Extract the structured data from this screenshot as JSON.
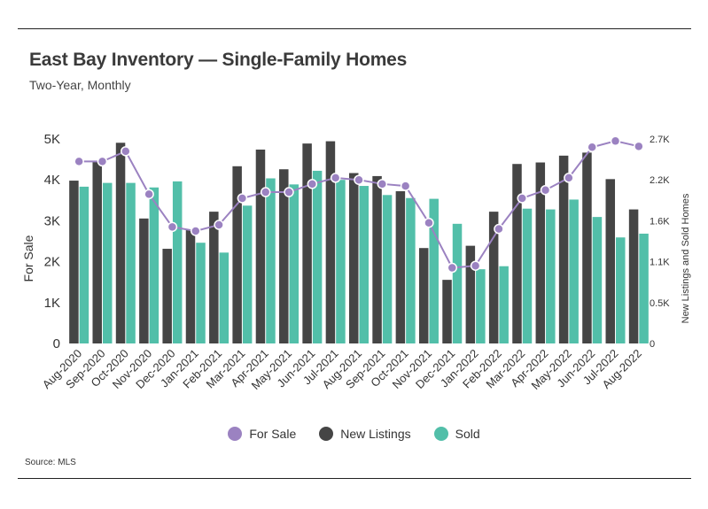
{
  "title": "East Bay Inventory — Single-Family Homes",
  "subtitle": "Two-Year, Monthly",
  "source": "Source:  MLS",
  "colors": {
    "for_sale": "#9b82c1",
    "new_listings": "#454545",
    "sold": "#52bfa9",
    "text": "#333333"
  },
  "chart_data": {
    "type": "bar",
    "combo": "bars (New Listings, Sold) on right axis; line (For Sale) on left axis",
    "categories": [
      "Aug-2020",
      "Sep-2020",
      "Oct-2020",
      "Nov-2020",
      "Dec-2020",
      "Jan-2021",
      "Feb-2021",
      "Mar-2021",
      "Apr-2021",
      "May-2021",
      "Jun-2021",
      "Jul-2021",
      "Aug-2021",
      "Sep-2021",
      "Oct-2021",
      "Nov-2021",
      "Dec-2021",
      "Jan-2022",
      "Feb-2022",
      "Mar-2022",
      "Apr-2022",
      "May-2022",
      "Jun-2022",
      "Jul-2022",
      "Aug-2022"
    ],
    "ylabel": "For Sale",
    "y2label": "New Listings and Sold Homes",
    "ylim": [
      0,
      5000
    ],
    "y2lim": [
      0,
      2700
    ],
    "yticks": [
      "0",
      "1K",
      "2K",
      "3K",
      "4K",
      "5K"
    ],
    "y2ticks": [
      "0",
      "0.5K",
      "1.1K",
      "1.6K",
      "2.2K",
      "2.7K"
    ],
    "grid": false,
    "legend_position": "bottom",
    "series": [
      {
        "name": "For Sale",
        "type": "line",
        "axis": "left",
        "values": [
          4450,
          4450,
          4700,
          3650,
          2850,
          2750,
          2900,
          3550,
          3700,
          3700,
          3900,
          4050,
          4000,
          3900,
          3850,
          2950,
          1850,
          1900,
          2800,
          3550,
          3750,
          4050,
          4800,
          4950,
          4820
        ]
      },
      {
        "name": "New Listings",
        "type": "bar",
        "axis": "right",
        "values": [
          2150,
          2400,
          2650,
          1650,
          1250,
          1500,
          1740,
          2340,
          2560,
          2300,
          2640,
          2670,
          2250,
          2210,
          2010,
          1260,
          840,
          1290,
          1740,
          2370,
          2390,
          2480,
          2520,
          2170,
          1770
        ]
      },
      {
        "name": "Sold",
        "type": "bar",
        "axis": "right",
        "values": [
          2070,
          2120,
          2120,
          2060,
          2140,
          1330,
          1200,
          1820,
          2180,
          2100,
          2280,
          2160,
          2080,
          1960,
          1920,
          1910,
          1580,
          980,
          1020,
          1780,
          1770,
          1900,
          1670,
          1400,
          1450
        ]
      }
    ]
  }
}
